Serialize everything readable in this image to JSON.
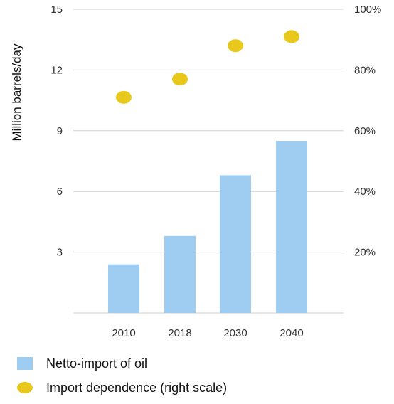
{
  "chart_data": {
    "type": "bar",
    "categories": [
      "2010",
      "2018",
      "2030",
      "2040"
    ],
    "series": [
      {
        "name": "Netto-import of oil",
        "kind": "bar",
        "axis": "left",
        "color": "#9fcdf2",
        "values": [
          2.4,
          3.8,
          6.8,
          8.5
        ]
      },
      {
        "name": "Import dependence (right scale)",
        "kind": "point",
        "axis": "right",
        "color": "#e8c81a",
        "values": [
          71,
          77,
          88,
          91
        ]
      }
    ],
    "ylabel": "Million barrels/day",
    "ylim": [
      0,
      15
    ],
    "yticks": [
      "3",
      "6",
      "9",
      "12",
      "15"
    ],
    "y2lim": [
      0,
      100
    ],
    "y2ticks": [
      "20%",
      "40%",
      "60%",
      "80%",
      "100%"
    ],
    "grid": true,
    "legend_position": "bottom-left"
  }
}
